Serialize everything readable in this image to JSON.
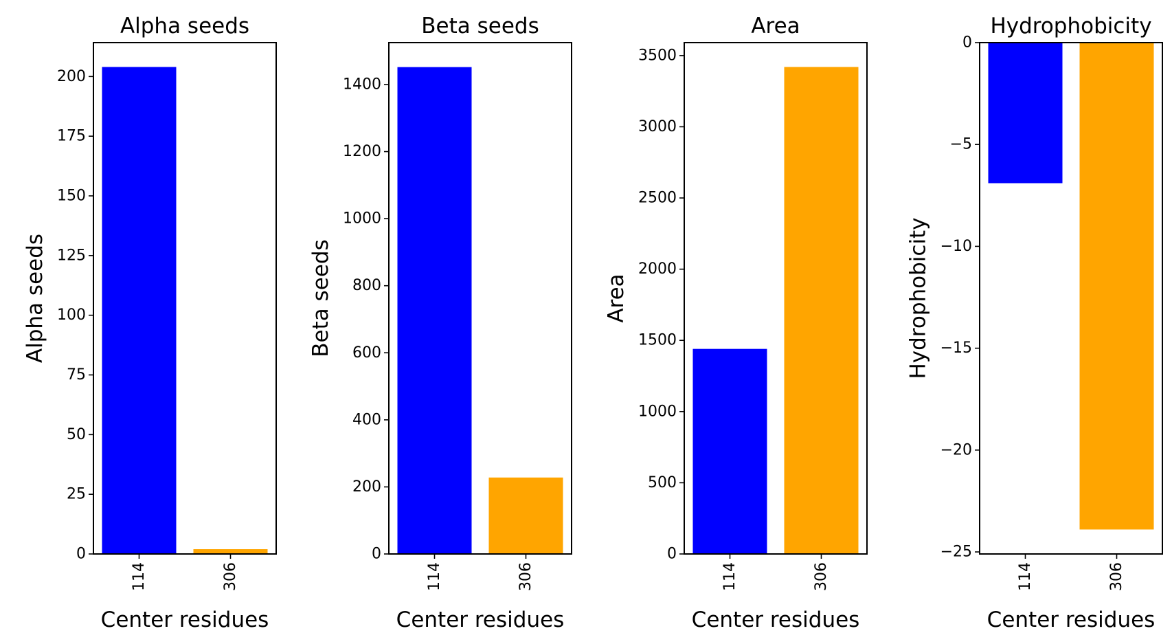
{
  "chart_data": [
    {
      "type": "bar",
      "title": "Alpha seeds",
      "xlabel": "Center residues",
      "ylabel": "Alpha seeds",
      "categories": [
        "114",
        "306"
      ],
      "values": [
        204,
        2
      ],
      "colors": [
        "#0000ff",
        "#ffa500"
      ],
      "ylim": [
        0,
        214.2
      ],
      "yticks": [
        0,
        25,
        50,
        75,
        100,
        125,
        150,
        175,
        200
      ],
      "ytick_labels": [
        "0",
        "25",
        "50",
        "75",
        "100",
        "125",
        "150",
        "175",
        "200"
      ]
    },
    {
      "type": "bar",
      "title": "Beta seeds",
      "xlabel": "Center residues",
      "ylabel": "Beta seeds",
      "categories": [
        "114",
        "306"
      ],
      "values": [
        1452,
        228
      ],
      "colors": [
        "#0000ff",
        "#ffa500"
      ],
      "ylim": [
        0,
        1525
      ],
      "yticks": [
        0,
        200,
        400,
        600,
        800,
        1000,
        1200,
        1400
      ],
      "ytick_labels": [
        "0",
        "200",
        "400",
        "600",
        "800",
        "1000",
        "1200",
        "1400"
      ]
    },
    {
      "type": "bar",
      "title": "Area",
      "xlabel": "Center residues",
      "ylabel": "Area",
      "categories": [
        "114",
        "306"
      ],
      "values": [
        1440,
        3420
      ],
      "colors": [
        "#0000ff",
        "#ffa500"
      ],
      "ylim": [
        0,
        3591
      ],
      "yticks": [
        0,
        500,
        1000,
        1500,
        2000,
        2500,
        3000,
        3500
      ],
      "ytick_labels": [
        "0",
        "500",
        "1000",
        "1500",
        "2000",
        "2500",
        "3000",
        "3500"
      ]
    },
    {
      "type": "bar",
      "title": "Hydrophobicity",
      "xlabel": "Center residues",
      "ylabel": "Hydrophobicity",
      "categories": [
        "114",
        "306"
      ],
      "values": [
        -6.9,
        -23.9
      ],
      "colors": [
        "#0000ff",
        "#ffa500"
      ],
      "ylim": [
        -25.1,
        0
      ],
      "yticks": [
        0,
        -5,
        -10,
        -15,
        -20,
        -25
      ],
      "ytick_labels": [
        "0",
        "−5",
        "−10",
        "−15",
        "−20",
        "−25"
      ]
    }
  ]
}
